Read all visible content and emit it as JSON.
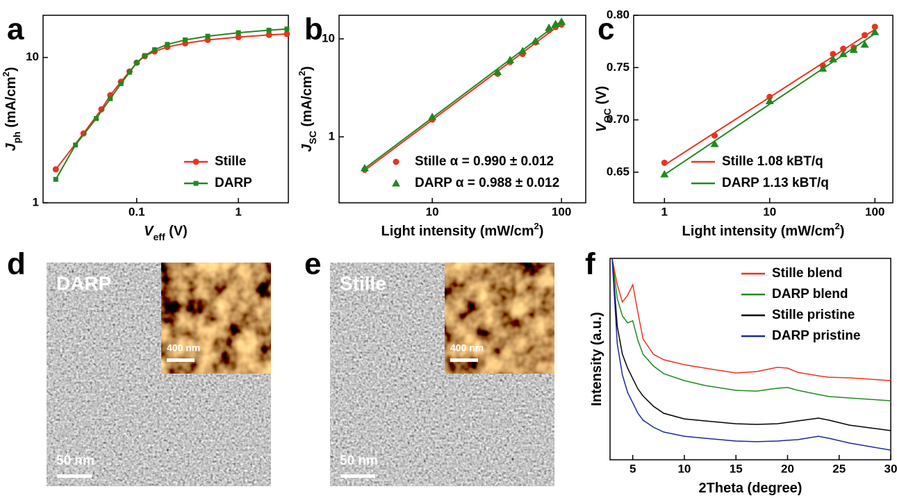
{
  "chart_data": [
    {
      "type": "line",
      "panel": "a",
      "xscale": "log",
      "yscale": "log",
      "legend": "lower right",
      "x_label": [
        {
          "text": "V",
          "italic": true
        },
        {
          "text": "eff",
          "sub": true
        },
        {
          "text": " (V)"
        }
      ],
      "y_label": [
        {
          "text": "J",
          "italic": true
        },
        {
          "text": "ph",
          "sub": true
        },
        {
          "text": " (mA/cm"
        },
        {
          "text": "2",
          "sup": true
        },
        {
          "text": ")"
        }
      ],
      "xlim": [
        0.012,
        3.1
      ],
      "ylim": [
        1,
        19.5
      ],
      "xticks": [
        0.1,
        1
      ],
      "yticks": [
        1,
        10
      ],
      "series": [
        {
          "name": "Stille",
          "color": "#f0301e",
          "marker": "circle",
          "x": [
            0.016,
            0.03,
            0.045,
            0.055,
            0.07,
            0.085,
            0.1,
            0.12,
            0.15,
            0.2,
            0.3,
            0.5,
            1,
            2,
            3
          ],
          "values": [
            1.7,
            3.0,
            4.4,
            5.5,
            6.8,
            8,
            9.2,
            10.2,
            11,
            11.8,
            12.5,
            13.2,
            13.8,
            14.3,
            14.5
          ]
        },
        {
          "name": "DARP",
          "color": "#1e8a1e",
          "marker": "square",
          "x": [
            0.016,
            0.025,
            0.04,
            0.055,
            0.07,
            0.085,
            0.1,
            0.12,
            0.15,
            0.2,
            0.3,
            0.5,
            1,
            2,
            3
          ],
          "values": [
            1.45,
            2.5,
            3.8,
            5.2,
            6.6,
            7.9,
            9.2,
            10.3,
            11.3,
            12.3,
            13.2,
            14,
            14.8,
            15.4,
            15.7
          ]
        }
      ]
    },
    {
      "type": "scatter",
      "panel": "b",
      "xscale": "log",
      "yscale": "log",
      "fit": true,
      "legend": "lower right",
      "x_label": [
        {
          "text": "Light intensity (mW/cm"
        },
        {
          "text": "2",
          "sup": true
        },
        {
          "text": ")"
        }
      ],
      "y_label": [
        {
          "text": "J",
          "italic": true
        },
        {
          "text": "SC",
          "sub": true
        },
        {
          "text": " (mA/cm"
        },
        {
          "text": "2",
          "sup": true
        },
        {
          "text": ")"
        }
      ],
      "xlim": [
        1.9,
        154
      ],
      "ylim": [
        0.212,
        17.4
      ],
      "xticks": [
        10,
        100
      ],
      "yticks": [
        1,
        10
      ],
      "series": [
        {
          "name": "Stille α = 0.990 ± 0.012",
          "color": "#f0301e",
          "marker": "circle",
          "x": [
            3,
            10,
            32,
            40,
            50,
            63,
            80,
            90,
            100
          ],
          "values": [
            0.46,
            1.5,
            4.4,
            5.8,
            7,
            9.2,
            12.2,
            13.2,
            14
          ]
        },
        {
          "name": "DARP α = 0.988 ± 0.012",
          "color": "#1e8a1e",
          "marker": "triangle",
          "x": [
            3,
            10,
            32,
            40,
            50,
            63,
            80,
            90,
            100
          ],
          "values": [
            0.48,
            1.6,
            4.6,
            6.1,
            7.5,
            9.5,
            13,
            14.2,
            15
          ]
        }
      ]
    },
    {
      "type": "scatter",
      "panel": "c",
      "xscale": "log",
      "fit": true,
      "legend": "lower right",
      "x_label": [
        {
          "text": "Light intensity (mW/cm"
        },
        {
          "text": "2",
          "sup": true
        },
        {
          "text": ")"
        }
      ],
      "y_label": [
        {
          "text": "V",
          "italic": true
        },
        {
          "text": "OC",
          "sub": true
        },
        {
          "text": " (V)"
        }
      ],
      "xlim": [
        0.51,
        148
      ],
      "ylim": [
        0.6207,
        0.8
      ],
      "xticks": [
        1,
        10,
        100
      ],
      "yticks": [
        0.65,
        {
          "value": 0.7,
          "label": "0.70"
        },
        0.75,
        {
          "value": 0.8,
          "label": "0.80"
        }
      ],
      "series": [
        {
          "name": "Stille 1.08 kBT/q",
          "color": "#f0301e",
          "marker": "circle",
          "x": [
            1,
            3,
            10,
            32,
            40,
            50,
            63,
            80,
            100
          ],
          "values": [
            0.659,
            0.685,
            0.722,
            0.752,
            0.763,
            0.768,
            0.769,
            0.781,
            0.789
          ]
        },
        {
          "name": "DARP 1.13 kBT/q",
          "color": "#1e8a1e",
          "marker": "triangle",
          "x": [
            1,
            3,
            10,
            32,
            40,
            50,
            63,
            80,
            100
          ],
          "values": [
            0.648,
            0.677,
            0.718,
            0.749,
            0.758,
            0.763,
            0.767,
            0.772,
            0.784
          ]
        }
      ]
    },
    {
      "type": "image",
      "panel": "d",
      "label": "DARP",
      "inset_scale": "400 nm",
      "scale": "50 nm"
    },
    {
      "type": "image",
      "panel": "e",
      "label": "Stille",
      "inset_scale": "400 nm",
      "scale": "50 nm"
    },
    {
      "type": "line",
      "panel": "f",
      "legend": "upper right",
      "x_label": [
        {
          "text": "2Theta (degree)"
        }
      ],
      "y_label": [
        {
          "text": "Intensity (a.u.)"
        }
      ],
      "xlim": [
        2.8,
        30
      ],
      "ylim": [
        0,
        100
      ],
      "xticks": [
        5,
        10,
        15,
        20,
        25,
        30
      ],
      "x": [
        3,
        3.5,
        4,
        4.5,
        5,
        5.5,
        6,
        7,
        8,
        10,
        12,
        15,
        17,
        19,
        20,
        21,
        23,
        24,
        26,
        30
      ],
      "series": [
        {
          "name": "Stille blend",
          "color": "#f0301e",
          "values": [
            100,
            86.9,
            78.3,
            81.7,
            86.9,
            73.1,
            60,
            52.4,
            49.7,
            47.2,
            45.5,
            43.1,
            43.8,
            45.9,
            45.5,
            43.4,
            41.7,
            41,
            40.7,
            39.3
          ]
        },
        {
          "name": "DARP blend",
          "color": "#1e8a1e",
          "values": [
            100,
            80,
            71.4,
            68,
            69,
            59.3,
            52.4,
            46.6,
            42.8,
            39.3,
            36.9,
            34.5,
            34.1,
            35.5,
            35.9,
            34.5,
            32.4,
            31.4,
            30.7,
            29.3
          ]
        },
        {
          "name": "Stille pristine",
          "color": "#000000",
          "values": [
            100,
            66.2,
            52.4,
            45.5,
            40.3,
            35.2,
            31.7,
            26.6,
            23.1,
            20.3,
            19.3,
            17.9,
            17.6,
            17.9,
            18.6,
            19.3,
            20.7,
            19.7,
            17.2,
            14.5
          ]
        },
        {
          "name": "DARP pristine",
          "color": "#1a2a9c",
          "values": [
            100,
            57.6,
            42.1,
            33.4,
            28.3,
            23.1,
            19.7,
            16.2,
            13.8,
            11.7,
            10.7,
            9.3,
            9,
            9.3,
            9.7,
            10,
            11.7,
            10.7,
            8.3,
            4.8
          ]
        }
      ]
    }
  ]
}
